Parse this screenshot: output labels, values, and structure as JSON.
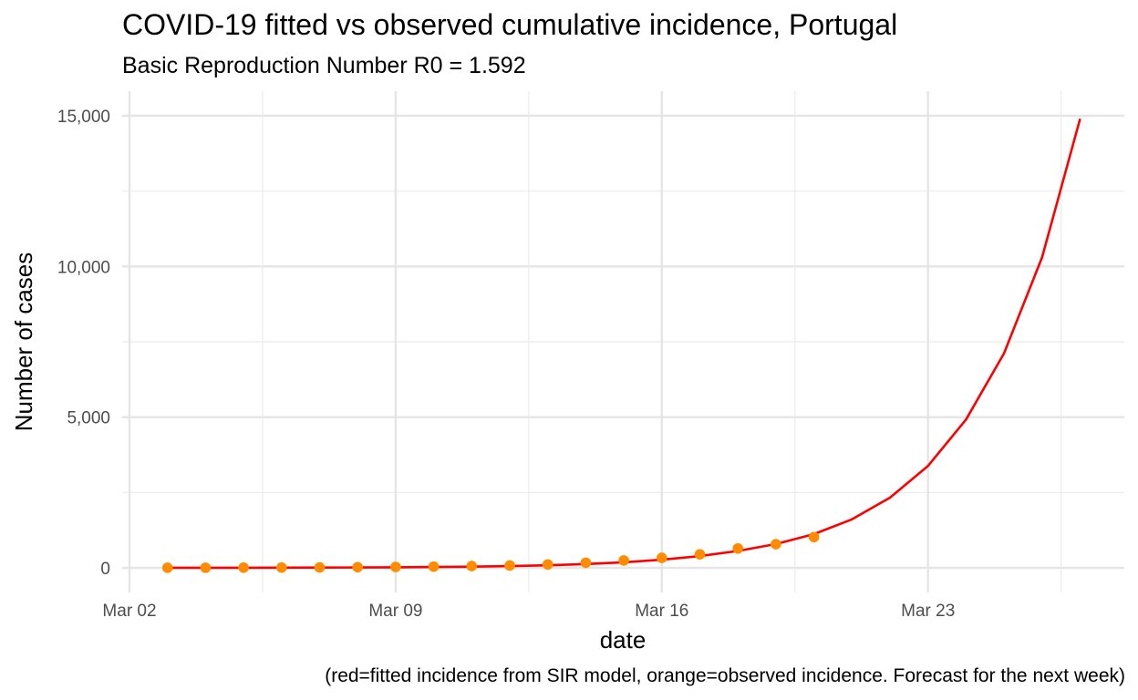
{
  "chart_data": {
    "type": "line",
    "title": "COVID-19 fitted vs observed cumulative incidence, Portugal",
    "subtitle": "Basic Reproduction Number R0 = 1.592",
    "xlabel": "date",
    "ylabel": "Number of cases",
    "caption": "(red=fitted incidence from SIR model, orange=observed incidence. Forecast for the next week)",
    "x_ticks": [
      "Mar 02",
      "Mar 09",
      "Mar 16",
      "Mar 23"
    ],
    "y_ticks": [
      "0",
      "5,000",
      "10,000",
      "15,000"
    ],
    "ylim": [
      -800,
      15500
    ],
    "grid": true,
    "series": [
      {
        "role": "fitted",
        "color": "#ff0000",
        "style": "line",
        "x": [
          "2020-03-03",
          "2020-03-04",
          "2020-03-05",
          "2020-03-06",
          "2020-03-07",
          "2020-03-08",
          "2020-03-09",
          "2020-03-10",
          "2020-03-11",
          "2020-03-12",
          "2020-03-13",
          "2020-03-14",
          "2020-03-15",
          "2020-03-16",
          "2020-03-17",
          "2020-03-18",
          "2020-03-19",
          "2020-03-20",
          "2020-03-21",
          "2020-03-22",
          "2020-03-23",
          "2020-03-24",
          "2020-03-25",
          "2020-03-26",
          "2020-03-27"
        ],
        "values": [
          2,
          3,
          4,
          6,
          9,
          13,
          19,
          27,
          40,
          58,
          86,
          127,
          185,
          270,
          390,
          560,
          790,
          1120,
          1610,
          2330,
          3380,
          4920,
          7120,
          10300,
          14900
        ]
      },
      {
        "role": "observed",
        "color": "#ff8c00",
        "style": "points",
        "x": [
          "2020-03-03",
          "2020-03-04",
          "2020-03-05",
          "2020-03-06",
          "2020-03-07",
          "2020-03-08",
          "2020-03-09",
          "2020-03-10",
          "2020-03-11",
          "2020-03-12",
          "2020-03-13",
          "2020-03-14",
          "2020-03-15",
          "2020-03-16",
          "2020-03-17",
          "2020-03-18",
          "2020-03-19",
          "2020-03-20"
        ],
        "values": [
          2,
          4,
          6,
          9,
          13,
          21,
          30,
          41,
          59,
          78,
          112,
          169,
          245,
          331,
          448,
          642,
          785,
          1020
        ]
      }
    ]
  }
}
